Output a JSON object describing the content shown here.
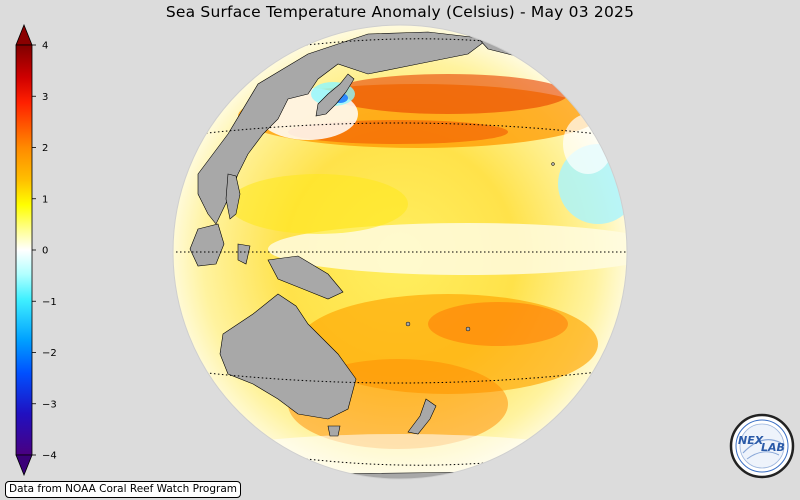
{
  "title": "Sea Surface Temperature Anomaly (Celsius) - May 03 2025",
  "colorbar": {
    "ticks": [
      "4",
      "3",
      "2",
      "1",
      "0",
      "−1",
      "−2",
      "−3",
      "−4"
    ],
    "min": -4,
    "max": 4,
    "extend": "both",
    "colors": {
      "max": "#7a0000",
      "high": "#e01010",
      "warm": "#ff8c00",
      "mild": "#ffee00",
      "zero": "#ffffff",
      "cool": "#66ffff",
      "cold": "#0070ff",
      "min": "#3a007a"
    }
  },
  "map": {
    "projection": "orthographic",
    "land_color": "#a8a8a8",
    "ocean_dominant_anomaly": "warm"
  },
  "credit": "Data from NOAA Coral Reef Watch Program",
  "logo": {
    "text_left": "NEX",
    "text_right": "LAB",
    "icon": "nexlab-logo-icon"
  }
}
